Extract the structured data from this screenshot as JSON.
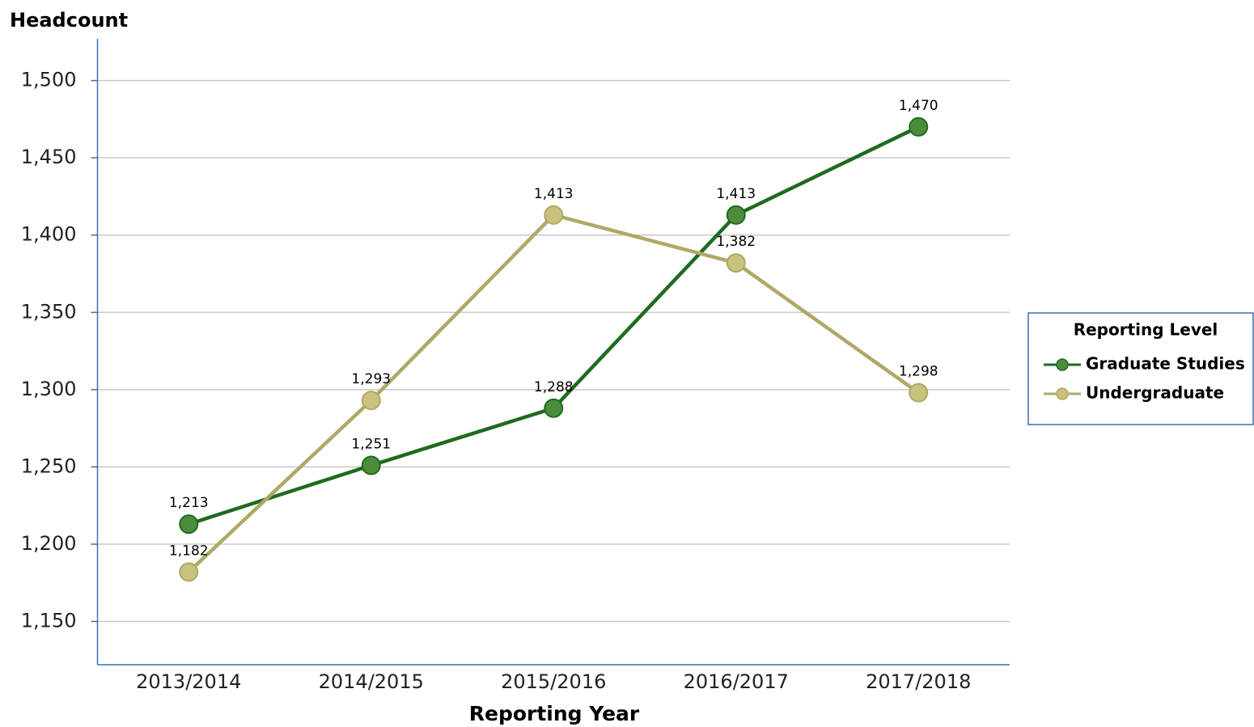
{
  "chart_data": {
    "type": "line",
    "y_label": "Headcount",
    "x_label": "Reporting Year",
    "legend_title": "Reporting Level",
    "legend": "right",
    "grid": true,
    "categories": [
      "2013/2014",
      "2014/2015",
      "2015/2016",
      "2016/2017",
      "2017/2018"
    ],
    "ylim": [
      1122,
      1527
    ],
    "yticks": [
      {
        "value": 1150,
        "label": "1,150"
      },
      {
        "value": 1200,
        "label": "1,200"
      },
      {
        "value": 1250,
        "label": "1,250"
      },
      {
        "value": 1300,
        "label": "1,300"
      },
      {
        "value": 1350,
        "label": "1,350"
      },
      {
        "value": 1400,
        "label": "1,400"
      },
      {
        "value": 1450,
        "label": "1,450"
      },
      {
        "value": 1500,
        "label": "1,500"
      }
    ],
    "series": [
      {
        "name": "Graduate Studies",
        "color": "#1f6b1f",
        "marker_color": "#4c8c3c",
        "values": [
          1213,
          1251,
          1288,
          1413,
          1470
        ],
        "value_labels": [
          "1,213",
          "1,251",
          "1,288",
          "1,413",
          "1,470"
        ]
      },
      {
        "name": "Undergraduate",
        "color": "#b0a866",
        "marker_color": "#c9c27d",
        "values": [
          1182,
          1293,
          1413,
          1382,
          1298
        ],
        "value_labels": [
          "1,182",
          "1,293",
          "1,413",
          "1,382",
          "1,298"
        ]
      }
    ]
  }
}
